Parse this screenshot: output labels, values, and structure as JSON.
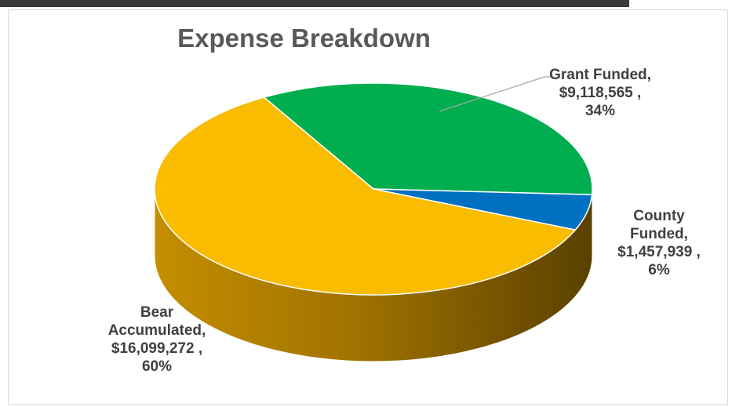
{
  "chart_data": {
    "type": "pie",
    "style": "3d",
    "title": "Expense Breakdown",
    "slices": [
      {
        "name": "Grant Funded",
        "value": 9118565,
        "value_label": "$9,118,565",
        "percent": 34,
        "color": "#00ae4f"
      },
      {
        "name": "County Funded",
        "value": 1457939,
        "value_label": "$1,457,939",
        "percent": 6,
        "color": "#0070c0"
      },
      {
        "name": "Bear Accumulated",
        "value": 16099272,
        "value_label": "$16,099,272",
        "percent": 60,
        "color": "#f9bc00"
      }
    ],
    "data_labels": {
      "grant": "Grant Funded,\n$9,118,565 ,\n34%",
      "county": "County\nFunded,\n$1,457,939 ,\n6%",
      "bear": "Bear\nAccumulated,\n$16,099,272 ,\n60%"
    },
    "legend": "none"
  }
}
